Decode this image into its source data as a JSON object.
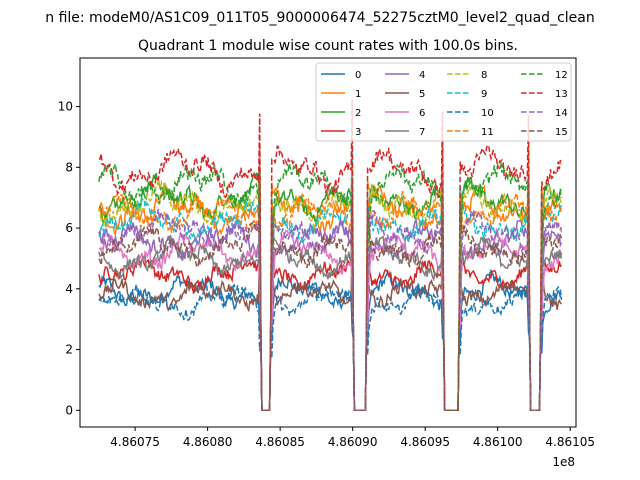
{
  "chart_data": {
    "type": "line",
    "suptitle": "n file: modeM0/AS1C09_011T05_9000006474_52275cztM0_level2_quad_clean",
    "title": "Quadrant 1 module wise count rates with 100.0s bins.",
    "xlabel": "",
    "ylabel": "",
    "x_offset_label": "1e8",
    "xlim": [
      4.860712,
      4.861054
    ],
    "ylim": [
      -0.55,
      11.6
    ],
    "xticks": [
      {
        "value": 4.86075,
        "label": "4.86075"
      },
      {
        "value": 4.8608,
        "label": "4.86080"
      },
      {
        "value": 4.86085,
        "label": "4.86085"
      },
      {
        "value": 4.8609,
        "label": "4.86090"
      },
      {
        "value": 4.86095,
        "label": "4.86095"
      },
      {
        "value": 4.861,
        "label": "4.86100"
      },
      {
        "value": 4.86105,
        "label": "4.86105"
      }
    ],
    "yticks": [
      {
        "value": 0,
        "label": "0"
      },
      {
        "value": 2,
        "label": "2"
      },
      {
        "value": 4,
        "label": "4"
      },
      {
        "value": 6,
        "label": "6"
      },
      {
        "value": 8,
        "label": "8"
      },
      {
        "value": 10,
        "label": "10"
      }
    ],
    "x_start": 4.860725,
    "x_end": 4.861044,
    "gaps": [
      [
        4.860837,
        4.860843
      ],
      [
        4.860901,
        4.860909
      ],
      [
        4.860963,
        4.860973
      ],
      [
        4.861022,
        4.861029
      ]
    ],
    "legend": {
      "position": "top-right",
      "columns": 4
    },
    "series": [
      {
        "name": "0",
        "color": "#1f77b4",
        "style": "solid",
        "level": 3.9
      },
      {
        "name": "1",
        "color": "#ff7f0e",
        "style": "solid",
        "level": 6.6
      },
      {
        "name": "2",
        "color": "#2ca02c",
        "style": "solid",
        "level": 7.0
      },
      {
        "name": "3",
        "color": "#d62728",
        "style": "solid",
        "level": 4.5
      },
      {
        "name": "4",
        "color": "#9467bd",
        "style": "solid",
        "level": 5.6
      },
      {
        "name": "5",
        "color": "#8c564b",
        "style": "solid",
        "level": 3.8
      },
      {
        "name": "6",
        "color": "#e377c2",
        "style": "solid",
        "level": 5.2
      },
      {
        "name": "7",
        "color": "#7f7f7f",
        "style": "solid",
        "level": 5.0
      },
      {
        "name": "8",
        "color": "#bcbd22",
        "style": "dashed",
        "level": 6.8
      },
      {
        "name": "9",
        "color": "#17becf",
        "style": "dashed",
        "level": 6.2
      },
      {
        "name": "10",
        "color": "#1f77b4",
        "style": "dashed",
        "level": 3.6
      },
      {
        "name": "11",
        "color": "#ff7f0e",
        "style": "dashed",
        "level": 6.5
      },
      {
        "name": "12",
        "color": "#2ca02c",
        "style": "dashed",
        "level": 7.4
      },
      {
        "name": "13",
        "color": "#d62728",
        "style": "dashed",
        "level": 7.9
      },
      {
        "name": "14",
        "color": "#9467bd",
        "style": "dashed",
        "level": 5.9
      },
      {
        "name": "15",
        "color": "#8c564b",
        "style": "dashed",
        "level": 5.4
      }
    ]
  }
}
